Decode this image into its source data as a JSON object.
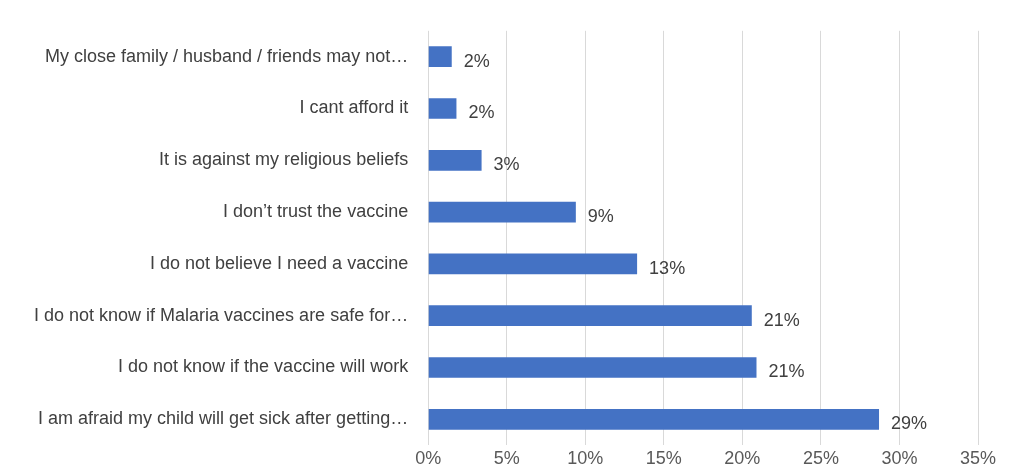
{
  "chart_data": {
    "type": "bar",
    "orientation": "horizontal",
    "categories": [
      "My close family / husband / friends may not…",
      "I cant afford it",
      "It is against my religious beliefs",
      "I don’t trust the vaccine",
      "I do not believe I need a vaccine",
      "I do not know if Malaria vaccines are safe for…",
      "I do not know if the vaccine will work",
      "I am afraid my child will get sick after getting…"
    ],
    "values": [
      1.5,
      1.8,
      3.4,
      9.4,
      13.3,
      20.6,
      20.9,
      28.7
    ],
    "value_labels": [
      "2%",
      "2%",
      "3%",
      "9%",
      "13%",
      "21%",
      "21%",
      "29%"
    ],
    "color": "#4472c4",
    "xlim": [
      0,
      35
    ],
    "xticks": [
      {
        "value": 0,
        "label": "0%"
      },
      {
        "value": 5,
        "label": "5%"
      },
      {
        "value": 10,
        "label": "10%"
      },
      {
        "value": 15,
        "label": "15%"
      },
      {
        "value": 20,
        "label": "20%"
      },
      {
        "value": 25,
        "label": "25%"
      },
      {
        "value": 30,
        "label": "30%"
      },
      {
        "value": 35,
        "label": "35%"
      }
    ],
    "grid": "x",
    "legend": false
  }
}
